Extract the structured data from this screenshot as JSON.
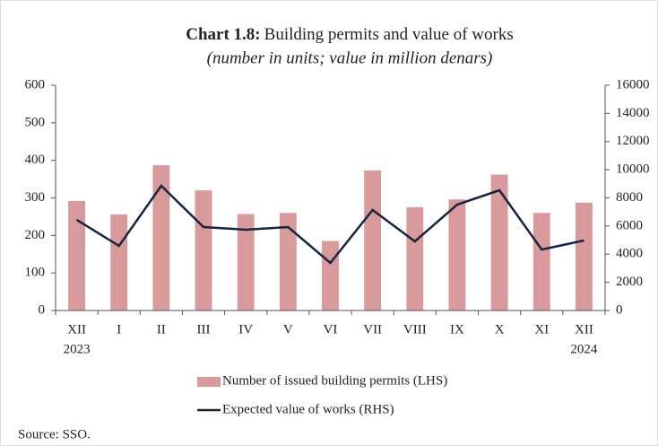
{
  "chart_data": {
    "type": "bar_line",
    "title_label": "Chart 1.8:",
    "title": "Building permits and value of works",
    "subtitle": "(number in units; value in million denars)",
    "categories": [
      "XII",
      "I",
      "II",
      "III",
      "IV",
      "V",
      "VI",
      "VII",
      "VIII",
      "IX",
      "X",
      "XI",
      "XII"
    ],
    "category_years": [
      "2023",
      null,
      null,
      null,
      null,
      null,
      null,
      null,
      null,
      null,
      null,
      null,
      "2024"
    ],
    "series": [
      {
        "name": "Number of issued building permits (LHS)",
        "type": "bar",
        "color": "#d99a9b",
        "axis": "y",
        "values": [
          292,
          256,
          387,
          320,
          257,
          260,
          185,
          373,
          275,
          296,
          362,
          260,
          287
        ]
      },
      {
        "name": "Expected value of works (RHS)",
        "type": "line",
        "color": "#15243f",
        "axis": "y2",
        "values": [
          6440,
          4590,
          8860,
          5930,
          5740,
          5930,
          3380,
          7140,
          4910,
          7520,
          8540,
          4330,
          4970
        ]
      }
    ],
    "ylim": [
      0,
      600
    ],
    "yticks": [
      0,
      100,
      200,
      300,
      400,
      500,
      600
    ],
    "y2lim": [
      0,
      16000
    ],
    "y2ticks": [
      0,
      2000,
      4000,
      6000,
      8000,
      10000,
      12000,
      14000,
      16000
    ],
    "source": "Source: SSO."
  }
}
